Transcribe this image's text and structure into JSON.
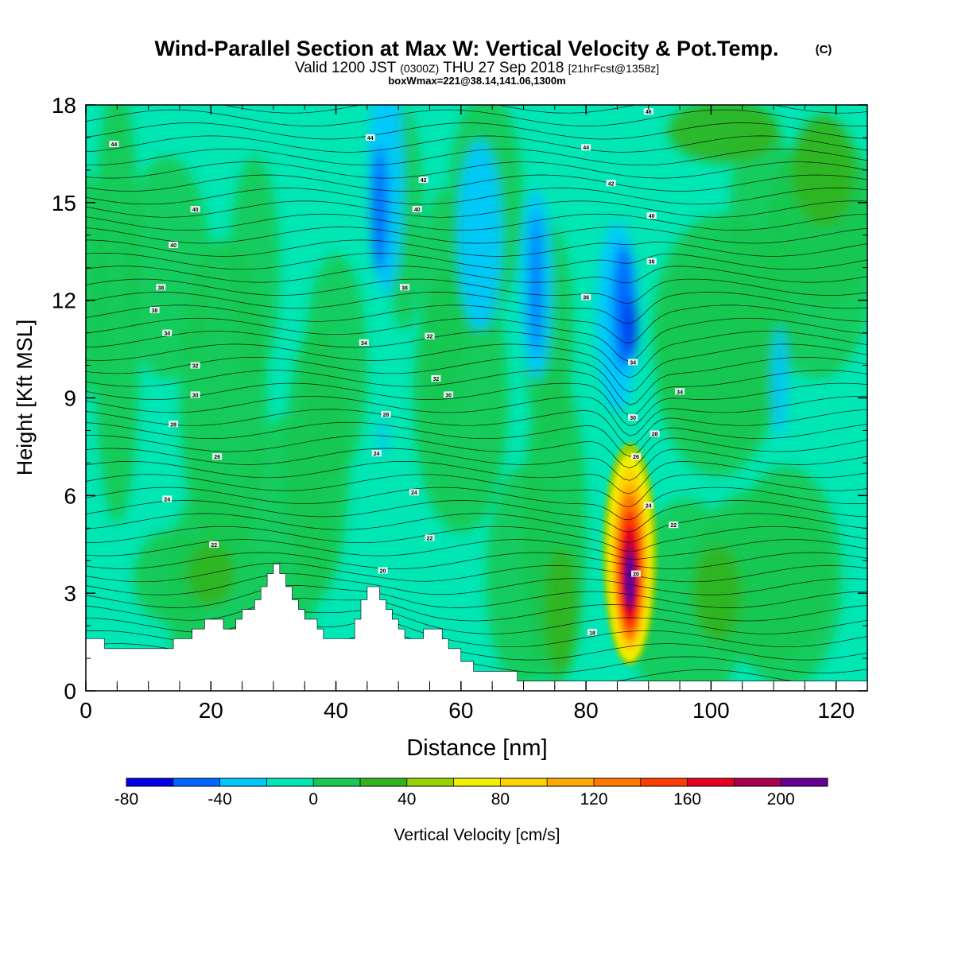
{
  "chart_data": {
    "type": "heatmap",
    "title": "Wind-Parallel Section at Max W: Vertical Velocity & Pot.Temp.",
    "title_mark": "(C)",
    "subtitle": {
      "valid": "Valid 1200 JST",
      "zulu": "(0300Z)",
      "date": "THU 27 Sep 2018",
      "forecast": "[21hrFcst@1358z]"
    },
    "boxline": "boxWmax=221@38.14,141.06,1300m",
    "xlabel": "Distance [nm]",
    "ylabel": "Height [Kft MSL]",
    "xlim": [
      0,
      125
    ],
    "ylim": [
      0,
      18
    ],
    "xticks": [
      "0",
      "20",
      "40",
      "60",
      "80",
      "100",
      "120"
    ],
    "yticks": [
      "0",
      "3",
      "6",
      "9",
      "12",
      "15",
      "18"
    ],
    "colorbar": {
      "label": "Vertical Velocity [cm/s]",
      "min": -80,
      "max": 220,
      "step": 20,
      "tick_labels": [
        "-80",
        "-40",
        "0",
        "40",
        "80",
        "120",
        "160",
        "200"
      ],
      "colors": [
        "#0000e6",
        "#0066ff",
        "#00c8ff",
        "#00e6b4",
        "#19c850",
        "#32b41e",
        "#96d200",
        "#f0f000",
        "#ffd200",
        "#ffaa00",
        "#ff7800",
        "#ff3c00",
        "#e6001e",
        "#aa0050",
        "#640096"
      ]
    },
    "updraft_core": {
      "x": 87,
      "z": 4.2,
      "max": 221
    },
    "theta_contour_labels": [
      {
        "x": 4.5,
        "z": 16.8,
        "text": "44"
      },
      {
        "x": 17.5,
        "z": 14.8,
        "text": "40"
      },
      {
        "x": 14,
        "z": 13.7,
        "text": "40"
      },
      {
        "x": 12,
        "z": 12.4,
        "text": "38"
      },
      {
        "x": 11,
        "z": 11.7,
        "text": "38"
      },
      {
        "x": 13,
        "z": 11.0,
        "text": "34"
      },
      {
        "x": 17.5,
        "z": 10.0,
        "text": "32"
      },
      {
        "x": 17.5,
        "z": 9.1,
        "text": "30"
      },
      {
        "x": 14,
        "z": 8.2,
        "text": "28"
      },
      {
        "x": 21,
        "z": 7.2,
        "text": "26"
      },
      {
        "x": 13,
        "z": 5.9,
        "text": "24"
      },
      {
        "x": 20.5,
        "z": 4.5,
        "text": "22"
      },
      {
        "x": 45.5,
        "z": 17.0,
        "text": "44"
      },
      {
        "x": 54,
        "z": 15.7,
        "text": "42"
      },
      {
        "x": 53,
        "z": 14.8,
        "text": "40"
      },
      {
        "x": 51,
        "z": 12.4,
        "text": "38"
      },
      {
        "x": 44.5,
        "z": 10.7,
        "text": "34"
      },
      {
        "x": 55,
        "z": 10.9,
        "text": "32"
      },
      {
        "x": 56,
        "z": 9.6,
        "text": "32"
      },
      {
        "x": 58,
        "z": 9.1,
        "text": "30"
      },
      {
        "x": 48,
        "z": 8.5,
        "text": "28"
      },
      {
        "x": 46.5,
        "z": 7.3,
        "text": "24"
      },
      {
        "x": 52.5,
        "z": 6.1,
        "text": "24"
      },
      {
        "x": 55,
        "z": 4.7,
        "text": "22"
      },
      {
        "x": 47.5,
        "z": 3.7,
        "text": "20"
      },
      {
        "x": 80,
        "z": 16.7,
        "text": "44"
      },
      {
        "x": 90,
        "z": 17.8,
        "text": "46"
      },
      {
        "x": 84,
        "z": 15.6,
        "text": "42"
      },
      {
        "x": 90.5,
        "z": 14.6,
        "text": "40"
      },
      {
        "x": 90.5,
        "z": 13.2,
        "text": "38"
      },
      {
        "x": 80,
        "z": 12.1,
        "text": "36"
      },
      {
        "x": 87.5,
        "z": 10.1,
        "text": "34"
      },
      {
        "x": 95,
        "z": 9.2,
        "text": "34"
      },
      {
        "x": 87.5,
        "z": 8.4,
        "text": "30"
      },
      {
        "x": 91,
        "z": 7.9,
        "text": "28"
      },
      {
        "x": 88,
        "z": 7.2,
        "text": "26"
      },
      {
        "x": 90,
        "z": 5.7,
        "text": "24"
      },
      {
        "x": 94,
        "z": 5.1,
        "text": "22"
      },
      {
        "x": 88,
        "z": 3.6,
        "text": "20"
      },
      {
        "x": 81,
        "z": 1.8,
        "text": "18"
      }
    ]
  }
}
